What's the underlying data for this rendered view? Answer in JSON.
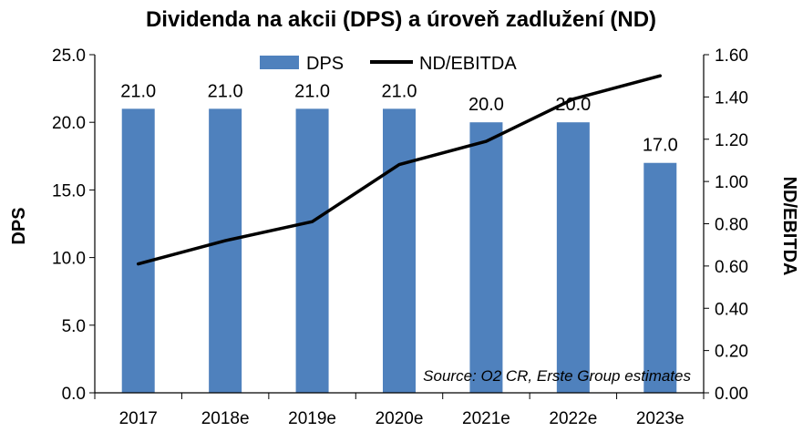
{
  "chart_data": {
    "type": "bar",
    "title": "Dividenda na akcii (DPS) a úroveň zadlužení (ND)",
    "categories": [
      "2017",
      "2018e",
      "2019e",
      "2020e",
      "2021e",
      "2022e",
      "2023e"
    ],
    "series": [
      {
        "name": "DPS",
        "type": "bar",
        "axis": "left",
        "color": "#4f81bd",
        "values": [
          21.0,
          21.0,
          21.0,
          21.0,
          20.0,
          20.0,
          17.0
        ],
        "data_labels": [
          "21.0",
          "21.0",
          "21.0",
          "21.0",
          "20.0",
          "20.0",
          "17.0"
        ]
      },
      {
        "name": "ND/EBITDA",
        "type": "line",
        "axis": "right",
        "color": "#000000",
        "values": [
          0.61,
          0.72,
          0.81,
          1.08,
          1.19,
          1.39,
          1.5
        ]
      }
    ],
    "ylabel": "DPS",
    "y2label": "ND/EBITDA",
    "ylim": [
      0,
      25
    ],
    "y2lim": [
      0,
      1.6
    ],
    "yticks": [
      "0.0",
      "5.0",
      "10.0",
      "15.0",
      "20.0",
      "25.0"
    ],
    "y2ticks": [
      "0.00",
      "0.20",
      "0.40",
      "0.60",
      "0.80",
      "1.00",
      "1.20",
      "1.40",
      "1.60"
    ],
    "legend_position": "top",
    "grid": false,
    "annotation": "Source: O2 CR, Erste Group estimates"
  }
}
